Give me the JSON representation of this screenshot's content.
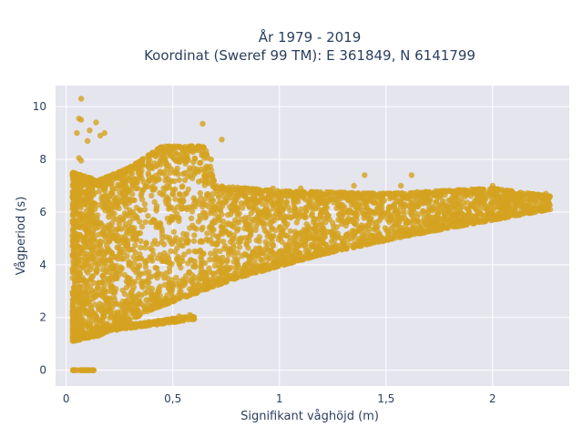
{
  "chart_data": {
    "type": "scatter",
    "title": "År 1979 - 2019",
    "subtitle": "Koordinat (Sweref 99 TM): E 361849, N 6141799",
    "xlabel": "Signifikant våghöjd (m)",
    "ylabel": "Vågperiod (s)",
    "xlim": [
      -0.05,
      2.36
    ],
    "ylim": [
      -0.6,
      10.8
    ],
    "x_ticks": [
      0,
      0.5,
      1,
      1.5,
      2
    ],
    "x_tick_labels": [
      "0",
      "0,5",
      "1",
      "1,5",
      "2"
    ],
    "y_ticks": [
      0,
      2,
      4,
      6,
      8,
      10
    ],
    "y_tick_labels": [
      "0",
      "2",
      "4",
      "6",
      "8",
      "10"
    ],
    "grid": true,
    "marker_color": "#D4A321",
    "plot_bg": "#E5E5EE",
    "point_groups": [
      {
        "name": "zero-period",
        "x_range": [
          0.03,
          0.13
        ],
        "y": 0
      },
      {
        "name": "main-cloud",
        "x_range": [
          0.03,
          2.27
        ],
        "y_lower_at_x": [
          [
            0.03,
            1.1
          ],
          [
            0.15,
            1.3
          ],
          [
            0.4,
            2.3
          ],
          [
            0.8,
            3.5
          ],
          [
            1.2,
            4.4
          ],
          [
            1.6,
            5.1
          ],
          [
            2.0,
            5.7
          ],
          [
            2.27,
            6.1
          ]
        ],
        "y_upper_at_x": [
          [
            0.03,
            7.5
          ],
          [
            0.15,
            7.2
          ],
          [
            0.3,
            7.7
          ],
          [
            0.45,
            8.5
          ],
          [
            0.65,
            8.5
          ],
          [
            0.7,
            7.0
          ],
          [
            1.0,
            6.8
          ],
          [
            1.5,
            6.7
          ],
          [
            2.0,
            6.9
          ],
          [
            2.27,
            6.6
          ]
        ]
      },
      {
        "name": "low-swell-band",
        "x_range": [
          0.15,
          0.6
        ],
        "y_at_x": [
          [
            0.15,
            1.5
          ],
          [
            0.6,
            2.0
          ]
        ]
      }
    ],
    "outliers": [
      {
        "x": 0.07,
        "y": 10.3
      },
      {
        "x": 0.06,
        "y": 9.55
      },
      {
        "x": 0.07,
        "y": 9.5
      },
      {
        "x": 0.05,
        "y": 9.0
      },
      {
        "x": 0.11,
        "y": 9.1
      },
      {
        "x": 0.14,
        "y": 9.4
      },
      {
        "x": 0.18,
        "y": 9.0
      },
      {
        "x": 0.16,
        "y": 8.9
      },
      {
        "x": 0.06,
        "y": 8.05
      },
      {
        "x": 0.07,
        "y": 7.95
      },
      {
        "x": 0.1,
        "y": 8.7
      },
      {
        "x": 0.64,
        "y": 9.35
      },
      {
        "x": 0.73,
        "y": 8.75
      },
      {
        "x": 0.68,
        "y": 8.0
      },
      {
        "x": 1.4,
        "y": 7.4
      },
      {
        "x": 1.57,
        "y": 7.0
      },
      {
        "x": 1.62,
        "y": 7.4
      },
      {
        "x": 1.35,
        "y": 7.0
      },
      {
        "x": 2.0,
        "y": 7.0
      },
      {
        "x": 2.25,
        "y": 6.7
      },
      {
        "x": 2.15,
        "y": 6.5
      },
      {
        "x": 1.1,
        "y": 6.9
      },
      {
        "x": 0.97,
        "y": 6.9
      },
      {
        "x": 0.58,
        "y": 2.1
      },
      {
        "x": 0.53,
        "y": 2.05
      },
      {
        "x": 0.05,
        "y": 6.5
      },
      {
        "x": 0.04,
        "y": 5.5
      },
      {
        "x": 0.1,
        "y": 5.8
      }
    ]
  }
}
